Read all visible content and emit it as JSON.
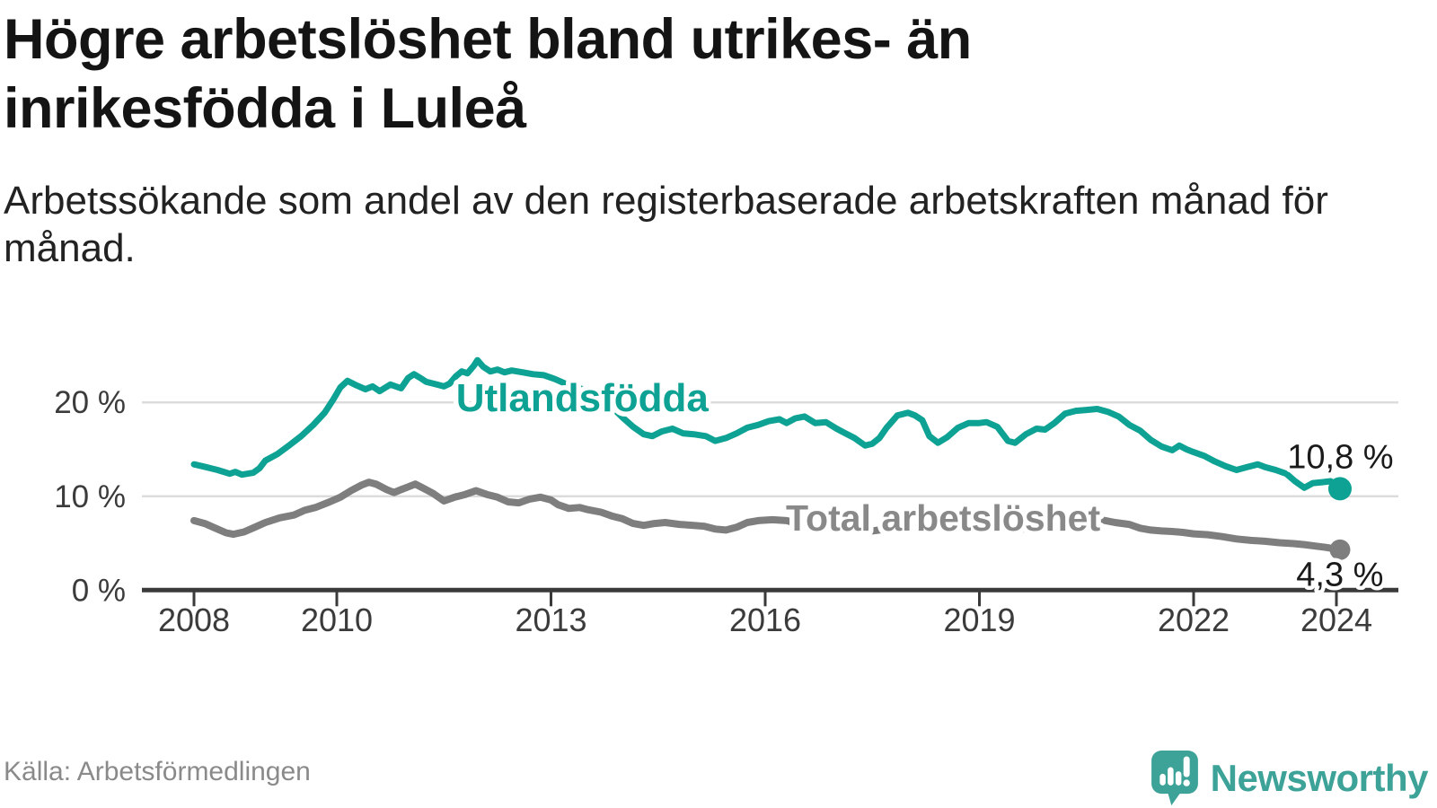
{
  "header": {
    "title": "Högre arbetslöshet bland utrikes- än inrikesfödda i Luleå",
    "subtitle": "Arbetssökande som andel av den registerbaserade arbetskraften månad för månad."
  },
  "footer": {
    "source": "Källa: Arbetsförmedlingen",
    "brand": "Newsworthy",
    "brand_color": "#3da298",
    "brand_icon": "newsworthy-speech-bubble-chart-icon"
  },
  "colors": {
    "series_foreign_born": "#0da293",
    "series_total": "#7e7e7e",
    "gridline": "#dcdcdc",
    "axis": "#3a3a3a",
    "tick_label": "#3b3b3b",
    "value_label": "#1a1a1a",
    "background": "#ffffff"
  },
  "chart_data": {
    "type": "line",
    "unit": "%",
    "grid": "horizontal",
    "x_axis": {
      "range": [
        2007.3,
        2024.9
      ],
      "ticks": [
        {
          "value": 2008,
          "label": "2008"
        },
        {
          "value": 2010,
          "label": "2010"
        },
        {
          "value": 2013,
          "label": "2013"
        },
        {
          "value": 2016,
          "label": "2016"
        },
        {
          "value": 2019,
          "label": "2019"
        },
        {
          "value": 2022,
          "label": "2022"
        },
        {
          "value": 2024,
          "label": "2024"
        }
      ]
    },
    "y_axis": {
      "range": [
        0,
        25.5
      ],
      "ticks": [
        {
          "value": 0,
          "label": "0 %"
        },
        {
          "value": 10,
          "label": "10 %"
        },
        {
          "value": 20,
          "label": "20 %"
        }
      ]
    },
    "series": [
      {
        "name": "Utlandsfödda",
        "color": "#0da293",
        "label_color": "#0da293",
        "stroke_width": 7,
        "end_value": 10.8,
        "end_label": "10,8 %",
        "end_label_pos": {
          "x": 2024.8,
          "y": 13.0
        },
        "label_pos": {
          "x": 2011.67,
          "y": 19.05
        },
        "points": [
          [
            2008.0,
            13.4
          ],
          [
            2008.17,
            13.1
          ],
          [
            2008.33,
            12.8
          ],
          [
            2008.5,
            12.4
          ],
          [
            2008.58,
            12.6
          ],
          [
            2008.67,
            12.3
          ],
          [
            2008.83,
            12.5
          ],
          [
            2008.92,
            13.0
          ],
          [
            2009.0,
            13.8
          ],
          [
            2009.17,
            14.5
          ],
          [
            2009.33,
            15.4
          ],
          [
            2009.5,
            16.4
          ],
          [
            2009.67,
            17.6
          ],
          [
            2009.83,
            18.9
          ],
          [
            2009.95,
            20.3
          ],
          [
            2010.05,
            21.6
          ],
          [
            2010.15,
            22.3
          ],
          [
            2010.25,
            21.9
          ],
          [
            2010.4,
            21.4
          ],
          [
            2010.5,
            21.7
          ],
          [
            2010.6,
            21.2
          ],
          [
            2010.75,
            21.9
          ],
          [
            2010.9,
            21.5
          ],
          [
            2011.0,
            22.6
          ],
          [
            2011.08,
            23.0
          ],
          [
            2011.17,
            22.6
          ],
          [
            2011.25,
            22.2
          ],
          [
            2011.4,
            21.9
          ],
          [
            2011.5,
            21.7
          ],
          [
            2011.58,
            22.0
          ],
          [
            2011.67,
            22.8
          ],
          [
            2011.75,
            23.3
          ],
          [
            2011.83,
            23.1
          ],
          [
            2011.92,
            23.9
          ],
          [
            2011.97,
            24.5
          ],
          [
            2012.05,
            23.8
          ],
          [
            2012.15,
            23.3
          ],
          [
            2012.25,
            23.5
          ],
          [
            2012.35,
            23.2
          ],
          [
            2012.45,
            23.4
          ],
          [
            2012.6,
            23.2
          ],
          [
            2012.75,
            23.0
          ],
          [
            2012.9,
            22.9
          ],
          [
            2013.05,
            22.5
          ],
          [
            2013.2,
            22.0
          ],
          [
            2013.4,
            21.5
          ],
          [
            2013.6,
            21.0
          ],
          [
            2013.75,
            20.3
          ],
          [
            2013.88,
            19.3
          ],
          [
            2014.0,
            18.4
          ],
          [
            2014.15,
            17.4
          ],
          [
            2014.3,
            16.6
          ],
          [
            2014.42,
            16.4
          ],
          [
            2014.55,
            16.9
          ],
          [
            2014.7,
            17.2
          ],
          [
            2014.85,
            16.7
          ],
          [
            2015.0,
            16.6
          ],
          [
            2015.17,
            16.4
          ],
          [
            2015.3,
            15.9
          ],
          [
            2015.45,
            16.2
          ],
          [
            2015.6,
            16.7
          ],
          [
            2015.75,
            17.3
          ],
          [
            2015.9,
            17.6
          ],
          [
            2016.05,
            18.0
          ],
          [
            2016.2,
            18.2
          ],
          [
            2016.3,
            17.8
          ],
          [
            2016.42,
            18.3
          ],
          [
            2016.55,
            18.5
          ],
          [
            2016.7,
            17.8
          ],
          [
            2016.85,
            17.9
          ],
          [
            2017.0,
            17.2
          ],
          [
            2017.1,
            16.8
          ],
          [
            2017.25,
            16.2
          ],
          [
            2017.4,
            15.4
          ],
          [
            2017.5,
            15.6
          ],
          [
            2017.6,
            16.2
          ],
          [
            2017.7,
            17.3
          ],
          [
            2017.85,
            18.6
          ],
          [
            2018.0,
            18.9
          ],
          [
            2018.1,
            18.6
          ],
          [
            2018.2,
            18.1
          ],
          [
            2018.3,
            16.4
          ],
          [
            2018.42,
            15.7
          ],
          [
            2018.55,
            16.3
          ],
          [
            2018.7,
            17.3
          ],
          [
            2018.85,
            17.8
          ],
          [
            2019.0,
            17.8
          ],
          [
            2019.1,
            17.9
          ],
          [
            2019.25,
            17.4
          ],
          [
            2019.4,
            15.9
          ],
          [
            2019.5,
            15.7
          ],
          [
            2019.65,
            16.6
          ],
          [
            2019.8,
            17.2
          ],
          [
            2019.92,
            17.1
          ],
          [
            2020.05,
            17.8
          ],
          [
            2020.2,
            18.8
          ],
          [
            2020.35,
            19.1
          ],
          [
            2020.5,
            19.2
          ],
          [
            2020.65,
            19.3
          ],
          [
            2020.8,
            19.0
          ],
          [
            2020.95,
            18.5
          ],
          [
            2021.1,
            17.6
          ],
          [
            2021.25,
            17.0
          ],
          [
            2021.4,
            16.0
          ],
          [
            2021.55,
            15.3
          ],
          [
            2021.7,
            14.9
          ],
          [
            2021.8,
            15.4
          ],
          [
            2021.9,
            15.0
          ],
          [
            2022.0,
            14.7
          ],
          [
            2022.15,
            14.3
          ],
          [
            2022.3,
            13.7
          ],
          [
            2022.45,
            13.2
          ],
          [
            2022.6,
            12.8
          ],
          [
            2022.75,
            13.1
          ],
          [
            2022.9,
            13.4
          ],
          [
            2023.0,
            13.1
          ],
          [
            2023.15,
            12.8
          ],
          [
            2023.3,
            12.4
          ],
          [
            2023.42,
            11.6
          ],
          [
            2023.55,
            10.9
          ],
          [
            2023.67,
            11.4
          ],
          [
            2023.8,
            11.5
          ],
          [
            2023.92,
            11.6
          ],
          [
            2024.05,
            10.8
          ]
        ]
      },
      {
        "name": "Total arbetslöshet",
        "color": "#7e7e7e",
        "label_color": "#898989",
        "stroke_width": 8,
        "end_value": 4.3,
        "end_label": "4,3 %",
        "end_label_pos": {
          "x": 2024.66,
          "y": 0.45
        },
        "label_pos": {
          "x": 2016.29,
          "y": 6.35
        },
        "points": [
          [
            2008.0,
            7.4
          ],
          [
            2008.15,
            7.1
          ],
          [
            2008.3,
            6.6
          ],
          [
            2008.45,
            6.1
          ],
          [
            2008.55,
            5.95
          ],
          [
            2008.7,
            6.2
          ],
          [
            2008.85,
            6.7
          ],
          [
            2009.0,
            7.2
          ],
          [
            2009.2,
            7.7
          ],
          [
            2009.4,
            8.0
          ],
          [
            2009.55,
            8.5
          ],
          [
            2009.7,
            8.8
          ],
          [
            2009.9,
            9.4
          ],
          [
            2010.05,
            9.9
          ],
          [
            2010.2,
            10.6
          ],
          [
            2010.35,
            11.2
          ],
          [
            2010.45,
            11.5
          ],
          [
            2010.55,
            11.3
          ],
          [
            2010.7,
            10.7
          ],
          [
            2010.8,
            10.4
          ],
          [
            2010.9,
            10.7
          ],
          [
            2011.0,
            11.0
          ],
          [
            2011.1,
            11.3
          ],
          [
            2011.2,
            10.9
          ],
          [
            2011.35,
            10.3
          ],
          [
            2011.5,
            9.5
          ],
          [
            2011.65,
            9.9
          ],
          [
            2011.8,
            10.2
          ],
          [
            2011.95,
            10.6
          ],
          [
            2012.1,
            10.2
          ],
          [
            2012.25,
            9.9
          ],
          [
            2012.4,
            9.4
          ],
          [
            2012.55,
            9.3
          ],
          [
            2012.7,
            9.7
          ],
          [
            2012.85,
            9.9
          ],
          [
            2013.0,
            9.6
          ],
          [
            2013.1,
            9.1
          ],
          [
            2013.25,
            8.7
          ],
          [
            2013.4,
            8.8
          ],
          [
            2013.5,
            8.6
          ],
          [
            2013.7,
            8.3
          ],
          [
            2013.85,
            7.9
          ],
          [
            2014.0,
            7.6
          ],
          [
            2014.15,
            7.1
          ],
          [
            2014.3,
            6.9
          ],
          [
            2014.45,
            7.1
          ],
          [
            2014.6,
            7.2
          ],
          [
            2014.8,
            7.0
          ],
          [
            2015.0,
            6.9
          ],
          [
            2015.15,
            6.8
          ],
          [
            2015.3,
            6.5
          ],
          [
            2015.45,
            6.4
          ],
          [
            2015.6,
            6.7
          ],
          [
            2015.75,
            7.2
          ],
          [
            2015.9,
            7.4
          ],
          [
            2016.1,
            7.5
          ],
          [
            2016.3,
            7.4
          ],
          [
            2016.5,
            7.0
          ],
          [
            2016.7,
            6.8
          ],
          [
            2016.9,
            6.6
          ],
          [
            2017.1,
            6.5
          ],
          [
            2017.3,
            6.4
          ],
          [
            2017.5,
            6.3
          ],
          [
            2017.7,
            6.5
          ],
          [
            2017.9,
            6.7
          ],
          [
            2018.1,
            6.8
          ],
          [
            2018.3,
            6.6
          ],
          [
            2018.5,
            6.8
          ],
          [
            2018.7,
            6.9
          ],
          [
            2018.9,
            6.8
          ],
          [
            2019.1,
            6.7
          ],
          [
            2019.3,
            6.5
          ],
          [
            2019.5,
            6.4
          ],
          [
            2019.7,
            6.6
          ],
          [
            2019.9,
            6.9
          ],
          [
            2020.1,
            7.3
          ],
          [
            2020.3,
            7.6
          ],
          [
            2020.5,
            7.7
          ],
          [
            2020.7,
            7.5
          ],
          [
            2020.9,
            7.2
          ],
          [
            2021.1,
            7.0
          ],
          [
            2021.25,
            6.6
          ],
          [
            2021.4,
            6.4
          ],
          [
            2021.55,
            6.3
          ],
          [
            2021.7,
            6.25
          ],
          [
            2021.85,
            6.15
          ],
          [
            2022.0,
            6.0
          ],
          [
            2022.2,
            5.9
          ],
          [
            2022.4,
            5.7
          ],
          [
            2022.6,
            5.45
          ],
          [
            2022.8,
            5.3
          ],
          [
            2023.0,
            5.2
          ],
          [
            2023.2,
            5.05
          ],
          [
            2023.4,
            4.95
          ],
          [
            2023.55,
            4.85
          ],
          [
            2023.7,
            4.7
          ],
          [
            2023.85,
            4.55
          ],
          [
            2024.05,
            4.3
          ]
        ]
      }
    ]
  }
}
